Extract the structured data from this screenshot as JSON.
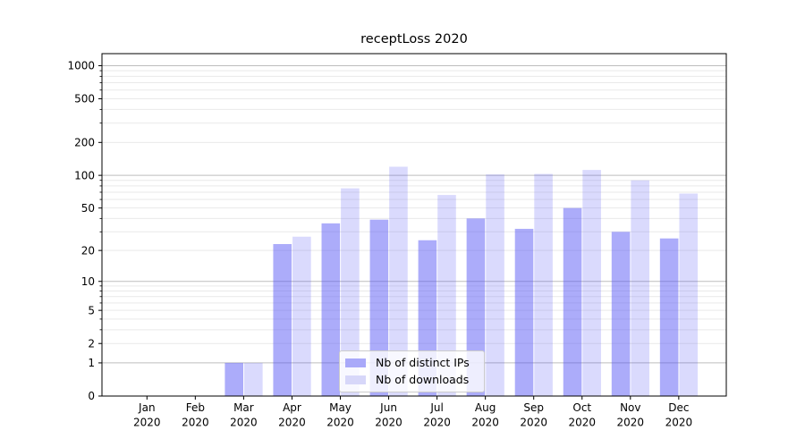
{
  "chart_data": {
    "type": "bar",
    "title": "receptLoss 2020",
    "x_categories": [
      "Jan",
      "Feb",
      "Mar",
      "Apr",
      "May",
      "Jun",
      "Jul",
      "Aug",
      "Sep",
      "Oct",
      "Nov",
      "Dec"
    ],
    "x_year": "2020",
    "series": [
      {
        "name": "Nb of distinct IPs",
        "values": [
          0,
          0,
          1,
          23,
          36,
          39,
          25,
          40,
          32,
          50,
          30,
          26
        ],
        "fill": "rgba(85,85,245,0.49)",
        "legend_color": "#a9a9f9"
      },
      {
        "name": "Nb of downloads",
        "values": [
          0,
          0,
          1,
          27,
          76,
          120,
          66,
          102,
          103,
          112,
          90,
          68
        ],
        "fill": "rgba(85,85,245,0.22)",
        "legend_color": "#d7d7f9"
      }
    ],
    "y_scale": "log1p",
    "ylim": [
      0,
      1286
    ],
    "y_tick_values": [
      0,
      1,
      2,
      5,
      10,
      20,
      50,
      100,
      200,
      500,
      1000
    ],
    "y_major_gridlines": [
      1,
      10,
      100,
      1000
    ],
    "y_minor_gridlines": [
      2,
      3,
      4,
      5,
      6,
      7,
      8,
      9,
      20,
      30,
      40,
      50,
      60,
      70,
      80,
      90,
      200,
      300,
      400,
      500,
      600,
      700,
      800,
      900
    ],
    "grid": true,
    "legend_position": "lower center",
    "xlabel": "",
    "ylabel": ""
  },
  "colors": {
    "background": "#ffffff",
    "bar_base": "#5555f5",
    "major_grid": "#bdbdbd",
    "minor_grid": "#e9e9e9",
    "spine": "#000000",
    "text": "#000000",
    "legend_border": "#cccccc"
  }
}
